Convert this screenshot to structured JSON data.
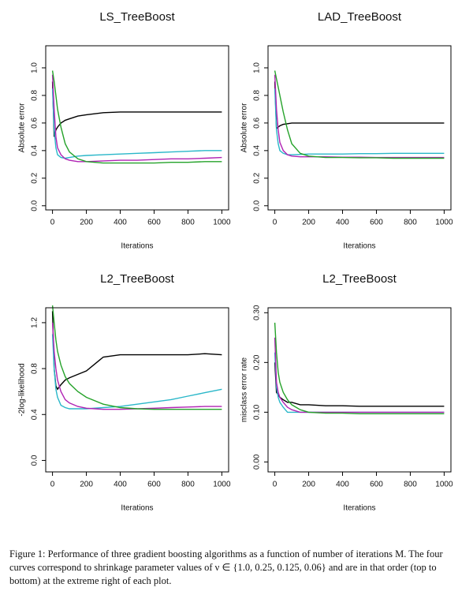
{
  "chart_data": [
    {
      "type": "line",
      "title": "LS_TreeBoost",
      "xlabel": "Iterations",
      "ylabel": "Absolute error",
      "x": [
        0,
        10,
        20,
        30,
        50,
        75,
        100,
        150,
        200,
        300,
        400,
        500,
        600,
        700,
        800,
        900,
        1000
      ],
      "xlim": [
        -40,
        1040
      ],
      "xticks": [
        0,
        200,
        400,
        600,
        800,
        1000
      ],
      "ylim": [
        -0.03,
        1.16
      ],
      "yticks": [
        {
          "value": 0,
          "label": "0.0"
        },
        0.2,
        0.4,
        0.6,
        0.8,
        {
          "value": 1,
          "label": "1.0"
        }
      ],
      "series": [
        {
          "color": "#000000",
          "values": [
            0.9,
            0.5,
            0.55,
            0.57,
            0.6,
            0.62,
            0.63,
            0.65,
            0.66,
            0.675,
            0.68,
            0.68,
            0.68,
            0.68,
            0.68,
            0.68,
            0.68
          ]
        },
        {
          "color": "#2ab7c9",
          "values": [
            0.85,
            0.55,
            0.42,
            0.37,
            0.35,
            0.345,
            0.35,
            0.36,
            0.365,
            0.37,
            0.375,
            0.38,
            0.385,
            0.39,
            0.395,
            0.4,
            0.4
          ]
        },
        {
          "color": "#b023b4",
          "values": [
            0.95,
            0.7,
            0.5,
            0.42,
            0.37,
            0.34,
            0.33,
            0.32,
            0.32,
            0.325,
            0.33,
            0.33,
            0.335,
            0.34,
            0.34,
            0.345,
            0.35
          ]
        },
        {
          "color": "#25a22a",
          "values": [
            0.98,
            0.9,
            0.8,
            0.7,
            0.57,
            0.45,
            0.39,
            0.34,
            0.32,
            0.31,
            0.31,
            0.31,
            0.31,
            0.315,
            0.315,
            0.32,
            0.32
          ]
        }
      ]
    },
    {
      "type": "line",
      "title": "LAD_TreeBoost",
      "xlabel": "Iterations",
      "ylabel": "Absolute error",
      "x": [
        0,
        10,
        20,
        30,
        50,
        75,
        100,
        150,
        200,
        300,
        400,
        500,
        600,
        700,
        800,
        900,
        1000
      ],
      "xlim": [
        -40,
        1040
      ],
      "xticks": [
        0,
        200,
        400,
        600,
        800,
        1000
      ],
      "ylim": [
        -0.03,
        1.16
      ],
      "yticks": [
        {
          "value": 0,
          "label": "0.0"
        },
        0.2,
        0.4,
        0.6,
        0.8,
        {
          "value": 1,
          "label": "1.0"
        }
      ],
      "series": [
        {
          "color": "#000000",
          "values": [
            0.9,
            0.56,
            0.57,
            0.58,
            0.59,
            0.595,
            0.6,
            0.6,
            0.6,
            0.6,
            0.6,
            0.6,
            0.6,
            0.6,
            0.6,
            0.6,
            0.6
          ]
        },
        {
          "color": "#2ab7c9",
          "values": [
            0.85,
            0.55,
            0.45,
            0.4,
            0.38,
            0.37,
            0.37,
            0.372,
            0.375,
            0.375,
            0.375,
            0.378,
            0.378,
            0.38,
            0.38,
            0.38,
            0.38
          ]
        },
        {
          "color": "#b023b4",
          "values": [
            0.95,
            0.7,
            0.55,
            0.46,
            0.4,
            0.37,
            0.36,
            0.355,
            0.355,
            0.355,
            0.352,
            0.352,
            0.35,
            0.35,
            0.35,
            0.35,
            0.35
          ]
        },
        {
          "color": "#25a22a",
          "values": [
            0.98,
            0.92,
            0.86,
            0.8,
            0.68,
            0.55,
            0.45,
            0.38,
            0.36,
            0.35,
            0.35,
            0.348,
            0.348,
            0.345,
            0.345,
            0.345,
            0.345
          ]
        }
      ]
    },
    {
      "type": "line",
      "title": "L2_TreeBoost",
      "xlabel": "Iterations",
      "ylabel": "-2log-likelihood",
      "x": [
        0,
        10,
        20,
        30,
        50,
        75,
        100,
        150,
        200,
        300,
        400,
        500,
        600,
        700,
        800,
        900,
        1000
      ],
      "xlim": [
        -40,
        1040
      ],
      "xticks": [
        0,
        200,
        400,
        600,
        800,
        1000
      ],
      "ylim": [
        -0.1,
        1.33
      ],
      "yticks": [
        {
          "value": 0,
          "label": "0.0"
        },
        0.4,
        0.8,
        1.2
      ],
      "series": [
        {
          "color": "#000000",
          "values": [
            1.3,
            0.8,
            0.65,
            0.62,
            0.66,
            0.7,
            0.72,
            0.75,
            0.78,
            0.9,
            0.92,
            0.92,
            0.92,
            0.92,
            0.92,
            0.93,
            0.92
          ]
        },
        {
          "color": "#2ab7c9",
          "values": [
            1.1,
            0.8,
            0.62,
            0.55,
            0.48,
            0.46,
            0.45,
            0.45,
            0.45,
            0.46,
            0.47,
            0.49,
            0.51,
            0.53,
            0.56,
            0.59,
            0.62
          ]
        },
        {
          "color": "#b023b4",
          "values": [
            1.2,
            0.95,
            0.8,
            0.7,
            0.6,
            0.53,
            0.5,
            0.47,
            0.455,
            0.445,
            0.445,
            0.45,
            0.455,
            0.46,
            0.465,
            0.47,
            0.47
          ]
        },
        {
          "color": "#25a22a",
          "values": [
            1.35,
            1.2,
            1.05,
            0.95,
            0.83,
            0.73,
            0.67,
            0.6,
            0.55,
            0.49,
            0.46,
            0.45,
            0.445,
            0.445,
            0.445,
            0.445,
            0.445
          ]
        }
      ]
    },
    {
      "type": "line",
      "title": "L2_TreeBoost",
      "xlabel": "Iterations",
      "ylabel": "misclass error rate",
      "x": [
        0,
        10,
        20,
        30,
        50,
        75,
        100,
        150,
        200,
        300,
        400,
        500,
        600,
        700,
        800,
        900,
        1000
      ],
      "xlim": [
        -40,
        1040
      ],
      "xticks": [
        0,
        200,
        400,
        600,
        800,
        1000
      ],
      "ylim": [
        -0.02,
        0.31
      ],
      "yticks": [
        {
          "value": 0,
          "label": "0.00"
        },
        {
          "value": 0.1,
          "label": "0.10"
        },
        {
          "value": 0.2,
          "label": "0.20"
        },
        {
          "value": 0.3,
          "label": "0.30"
        }
      ],
      "series": [
        {
          "color": "#000000",
          "values": [
            0.2,
            0.14,
            0.135,
            0.13,
            0.125,
            0.12,
            0.12,
            0.115,
            0.115,
            0.113,
            0.113,
            0.112,
            0.112,
            0.112,
            0.112,
            0.112,
            0.112
          ]
        },
        {
          "color": "#2ab7c9",
          "values": [
            0.22,
            0.15,
            0.13,
            0.12,
            0.11,
            0.1,
            0.1,
            0.1,
            0.1,
            0.1,
            0.1,
            0.1,
            0.1,
            0.1,
            0.1,
            0.1,
            0.1
          ]
        },
        {
          "color": "#b023b4",
          "values": [
            0.25,
            0.16,
            0.14,
            0.13,
            0.12,
            0.11,
            0.105,
            0.1,
            0.1,
            0.1,
            0.1,
            0.1,
            0.1,
            0.1,
            0.1,
            0.1,
            0.1
          ]
        },
        {
          "color": "#25a22a",
          "values": [
            0.28,
            0.22,
            0.18,
            0.16,
            0.14,
            0.125,
            0.115,
            0.105,
            0.1,
            0.098,
            0.098,
            0.097,
            0.097,
            0.097,
            0.097,
            0.097,
            0.097
          ]
        }
      ]
    }
  ],
  "caption": "Figure 1: Performance of three gradient boosting algorithms as a function of number of iterations M. The four curves correspond to shrinkage parameter values of ν ∈ {1.0, 0.25, 0.125, 0.06} and are in that order (top to bottom) at the extreme right of each plot."
}
